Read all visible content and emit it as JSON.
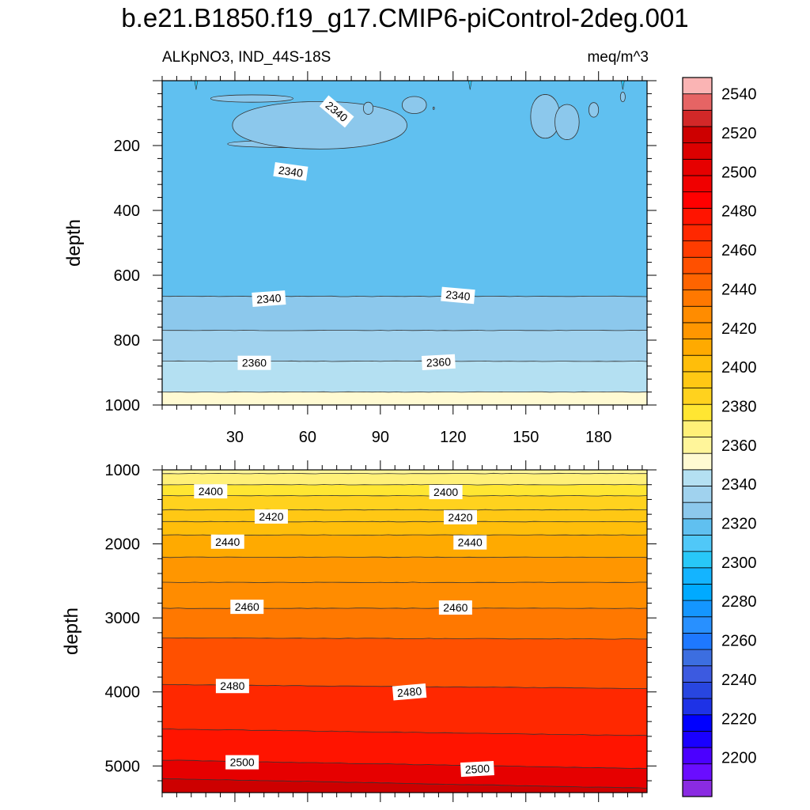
{
  "chart_data": {
    "type": "heatmap",
    "title": "b.e21.B1850.f19_g17.CMIP6-piControl-2deg.001",
    "subtitle_left": "ALKpNO3, IND_44S-18S",
    "subtitle_right": "meq/m^3",
    "colorbar": {
      "orientation": "vertical",
      "tick_labels": [
        "2200",
        "2220",
        "2240",
        "2260",
        "2280",
        "2300",
        "2320",
        "2340",
        "2360",
        "2380",
        "2400",
        "2420",
        "2440",
        "2460",
        "2480",
        "2500",
        "2520",
        "2540"
      ],
      "levels": [
        2190,
        2195,
        2200,
        2205,
        2210,
        2215,
        2220,
        2225,
        2230,
        2235,
        2240,
        2245,
        2250,
        2255,
        2260,
        2265,
        2270,
        2275,
        2280,
        2285,
        2290,
        2295,
        2300,
        2305,
        2310,
        2315,
        2320,
        2325,
        2330,
        2335,
        2340,
        2345,
        2350,
        2355,
        2360,
        2365,
        2370,
        2375,
        2380,
        2385,
        2390,
        2395,
        2400,
        2405,
        2410,
        2415,
        2420,
        2425,
        2430,
        2435,
        2440,
        2445,
        2450,
        2455,
        2460,
        2465,
        2470,
        2475,
        2480,
        2485,
        2490,
        2495,
        2500,
        2505,
        2510,
        2515,
        2520,
        2525,
        2530,
        2535,
        2540,
        2545,
        2550
      ],
      "colors": [
        "#8a2be2",
        "#6a0dff",
        "#4b00ff",
        "#1a00ff",
        "#0000ff",
        "#1e32e6",
        "#2846e0",
        "#3c5ae0",
        "#3c6ee0",
        "#1e78ff",
        "#2890ff",
        "#1496ff",
        "#00aaff",
        "#14b4ff",
        "#28c8f8",
        "#50c8f8",
        "#60c0f0",
        "#8cc8ec",
        "#a0d2ee",
        "#b4e0f2",
        "#fffad2",
        "#fff59a",
        "#fff078",
        "#ffe632",
        "#ffd21e",
        "#ffc814",
        "#ffbe0a",
        "#ffaa00",
        "#ff9600",
        "#ff8c00",
        "#ff7800",
        "#ff6400",
        "#ff5000",
        "#ff3c00",
        "#ff2800",
        "#ff1400",
        "#ff0000",
        "#f00000",
        "#e60000",
        "#dc0000",
        "#cd0000",
        "#d22828",
        "#e66464",
        "#fab4b4"
      ]
    },
    "top_panel": {
      "xlabel": "",
      "ylabel": "depth",
      "xlim": [
        0,
        200
      ],
      "ylim": [
        0,
        1000
      ],
      "y_reversed": true,
      "x_ticks": [
        30,
        60,
        90,
        120,
        150,
        180
      ],
      "y_ticks": [
        200,
        400,
        600,
        800,
        1000
      ],
      "bands": [
        {
          "from_depth": 0,
          "to_depth": 665,
          "value": 2335,
          "color": "#60c0f0"
        },
        {
          "from_depth": 665,
          "to_depth": 770,
          "value": 2345,
          "color": "#8cc8ec"
        },
        {
          "from_depth": 770,
          "to_depth": 865,
          "value": 2355,
          "color": "#a0d2ee"
        },
        {
          "from_depth": 865,
          "to_depth": 960,
          "value": 2365,
          "color": "#b4e0f2"
        },
        {
          "from_depth": 960,
          "to_depth": 1000,
          "value": 2375,
          "color": "#fffad2"
        }
      ],
      "contour_labels": [
        {
          "text": "2340",
          "x": 72,
          "depth": 95,
          "angle": 40
        },
        {
          "text": "2340",
          "x": 53,
          "depth": 280,
          "angle": 8
        },
        {
          "text": "2340",
          "x": 44,
          "depth": 672,
          "angle": -4
        },
        {
          "text": "2340",
          "x": 122,
          "depth": 662,
          "angle": 5
        },
        {
          "text": "2360",
          "x": 38,
          "depth": 870,
          "angle": 0
        },
        {
          "text": "2360",
          "x": 114,
          "depth": 868,
          "angle": -3
        }
      ]
    },
    "bottom_panel": {
      "xlabel": "",
      "ylabel": "depth",
      "xlim": [
        0,
        200
      ],
      "ylim": [
        1000,
        5360
      ],
      "y_reversed": true,
      "y_ticks": [
        1000,
        2000,
        3000,
        4000,
        5000
      ],
      "bands": [
        {
          "from_depth": 1000,
          "to_depth": 1050,
          "value": 2385,
          "color": "#fff59a"
        },
        {
          "from_depth": 1050,
          "to_depth": 1200,
          "value": 2390,
          "color": "#fff078"
        },
        {
          "from_depth": 1200,
          "to_depth": 1350,
          "value": 2395,
          "color": "#ffe632"
        },
        {
          "from_depth": 1350,
          "to_depth": 1540,
          "value": 2405,
          "color": "#ffd21e"
        },
        {
          "from_depth": 1540,
          "to_depth": 1700,
          "value": 2415,
          "color": "#ffc814"
        },
        {
          "from_depth": 1700,
          "to_depth": 1880,
          "value": 2420,
          "color": "#ffbe0a"
        },
        {
          "from_depth": 1880,
          "to_depth": 2180,
          "value": 2430,
          "color": "#ffaa00"
        },
        {
          "from_depth": 2180,
          "to_depth": 2520,
          "value": 2440,
          "color": "#ff9600"
        },
        {
          "from_depth": 2520,
          "to_depth": 2870,
          "value": 2450,
          "color": "#ff8c00"
        },
        {
          "from_depth": 2870,
          "to_depth": 3270,
          "value": 2460,
          "color": "#ff7800"
        },
        {
          "from_depth": 3270,
          "to_depth": 3900,
          "value": 2470,
          "color": "#ff5000"
        },
        {
          "from_depth": 3900,
          "to_depth": 4500,
          "value": 2480,
          "color": "#ff2800"
        },
        {
          "from_depth": 4500,
          "to_depth": 4920,
          "value": 2490,
          "color": "#ff1400"
        },
        {
          "from_depth": 4920,
          "to_depth": 5170,
          "value": 2500,
          "color": "#e60000"
        },
        {
          "from_depth": 5170,
          "to_depth": 5360,
          "value": 2510,
          "color": "#cd0000"
        }
      ],
      "contour_labels": [
        {
          "text": "2400",
          "x": 20,
          "depth": 1290,
          "angle": 0
        },
        {
          "text": "2400",
          "x": 117,
          "depth": 1300,
          "angle": 0
        },
        {
          "text": "2420",
          "x": 45,
          "depth": 1630,
          "angle": 0
        },
        {
          "text": "2420",
          "x": 123,
          "depth": 1640,
          "angle": 0
        },
        {
          "text": "2440",
          "x": 27,
          "depth": 1970,
          "angle": 0
        },
        {
          "text": "2440",
          "x": 127,
          "depth": 1980,
          "angle": 0
        },
        {
          "text": "2460",
          "x": 35,
          "depth": 2850,
          "angle": 0
        },
        {
          "text": "2460",
          "x": 121,
          "depth": 2860,
          "angle": 0
        },
        {
          "text": "2480",
          "x": 29,
          "depth": 3920,
          "angle": 0
        },
        {
          "text": "2480",
          "x": 102,
          "depth": 4000,
          "angle": -5
        },
        {
          "text": "2500",
          "x": 33,
          "depth": 4950,
          "angle": 0
        },
        {
          "text": "2500",
          "x": 130,
          "depth": 5040,
          "angle": -3
        }
      ]
    }
  }
}
